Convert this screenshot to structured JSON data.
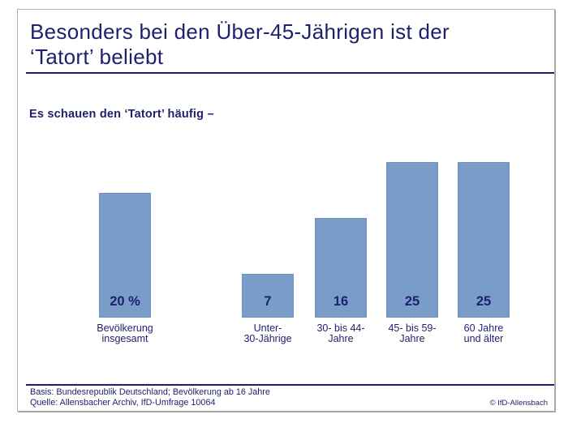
{
  "chart_data": {
    "type": "bar",
    "title": "Besonders bei den Über-45-Jährigen ist der ‘Tatort’ beliebt",
    "title_lines": [
      "Besonders bei den Über-45-Jährigen ist der",
      "‘Tatort’ beliebt"
    ],
    "subtitle": "Es schauen den ‘Tatort’ häufig –",
    "categories": [
      "Bevölkerung insgesamt",
      "Unter-30-Jährige",
      "30- bis 44-Jahre",
      "45- bis 59-Jahre",
      "60 Jahre und älter"
    ],
    "category_lines": [
      [
        "Bevölkerung",
        "insgesamt"
      ],
      [
        "Unter-",
        "30-Jährige"
      ],
      [
        "30- bis 44-",
        "Jahre"
      ],
      [
        "45- bis 59-",
        "Jahre"
      ],
      [
        "60 Jahre",
        "und älter"
      ]
    ],
    "values": [
      20,
      7,
      16,
      25,
      25
    ],
    "display_values": [
      "20 %",
      "7",
      "16",
      "25",
      "25"
    ],
    "unit": "%",
    "ylim": [
      0,
      26
    ],
    "grid": false,
    "legend": false,
    "bar_color": "#7a9cc9",
    "bar_border_color": "#6e90c0"
  },
  "footer": {
    "basis": "Basis: Bundesrepublik Deutschland; Bevölkerung ab 16 Jahre",
    "quelle": "Quelle: Allensbacher Archiv, IfD-Umfrage 10064",
    "copyright": "© IfD-Allensbach"
  },
  "colors": {
    "text_navy": "#1f1f6d",
    "bar_fill": "#7a9cc9",
    "frame_border": "#b2b2b2"
  }
}
